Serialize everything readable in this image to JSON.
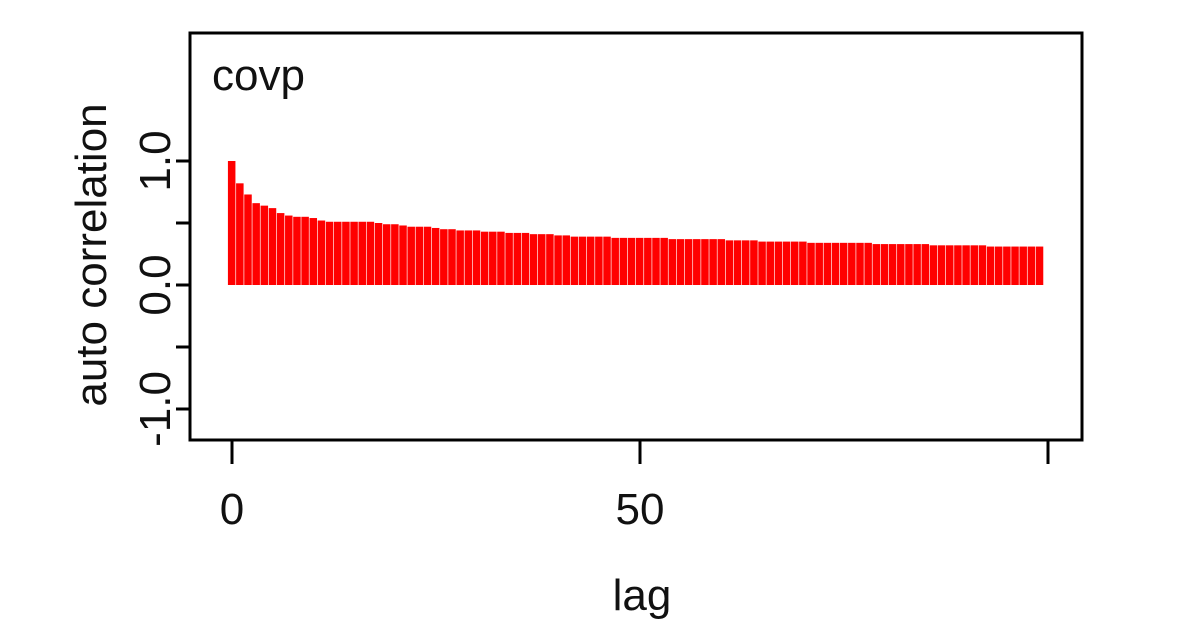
{
  "chart_data": {
    "type": "bar",
    "title": "covp",
    "xlabel": "lag",
    "ylabel": "auto correlation",
    "xlim": [
      -1,
      100
    ],
    "ylim": [
      -1.25,
      2.05
    ],
    "x_ticks": [
      0,
      50,
      100
    ],
    "x_tick_labels": [
      "0",
      "50",
      ""
    ],
    "y_ticks": [
      -1.0,
      -0.5,
      0.0,
      0.5,
      1.0
    ],
    "y_tick_labels": [
      "-1.0",
      "",
      "0.0",
      "",
      "1.0"
    ],
    "grid": false,
    "bar_color": "#ff0000",
    "x": [
      0,
      1,
      2,
      3,
      4,
      5,
      6,
      7,
      8,
      9,
      10,
      11,
      12,
      13,
      14,
      15,
      16,
      17,
      18,
      19,
      20,
      21,
      22,
      23,
      24,
      25,
      26,
      27,
      28,
      29,
      30,
      31,
      32,
      33,
      34,
      35,
      36,
      37,
      38,
      39,
      40,
      41,
      42,
      43,
      44,
      45,
      46,
      47,
      48,
      49,
      50,
      51,
      52,
      53,
      54,
      55,
      56,
      57,
      58,
      59,
      60,
      61,
      62,
      63,
      64,
      65,
      66,
      67,
      68,
      69,
      70,
      71,
      72,
      73,
      74,
      75,
      76,
      77,
      78,
      79,
      80,
      81,
      82,
      83,
      84,
      85,
      86,
      87,
      88,
      89,
      90,
      91,
      92,
      93,
      94,
      95,
      96,
      97,
      98,
      99
    ],
    "values": [
      1.0,
      0.82,
      0.73,
      0.66,
      0.64,
      0.62,
      0.58,
      0.56,
      0.55,
      0.55,
      0.54,
      0.52,
      0.51,
      0.51,
      0.51,
      0.51,
      0.51,
      0.51,
      0.5,
      0.49,
      0.49,
      0.48,
      0.47,
      0.47,
      0.47,
      0.46,
      0.45,
      0.45,
      0.44,
      0.44,
      0.44,
      0.43,
      0.43,
      0.43,
      0.42,
      0.42,
      0.42,
      0.41,
      0.41,
      0.41,
      0.4,
      0.4,
      0.39,
      0.39,
      0.39,
      0.39,
      0.39,
      0.38,
      0.38,
      0.38,
      0.38,
      0.38,
      0.38,
      0.38,
      0.37,
      0.37,
      0.37,
      0.37,
      0.37,
      0.37,
      0.37,
      0.36,
      0.36,
      0.36,
      0.36,
      0.35,
      0.35,
      0.35,
      0.35,
      0.35,
      0.35,
      0.34,
      0.34,
      0.34,
      0.34,
      0.34,
      0.34,
      0.34,
      0.34,
      0.33,
      0.33,
      0.33,
      0.33,
      0.33,
      0.33,
      0.33,
      0.32,
      0.32,
      0.32,
      0.32,
      0.32,
      0.32,
      0.32,
      0.31,
      0.31,
      0.31,
      0.31,
      0.31,
      0.31,
      0.31
    ]
  }
}
